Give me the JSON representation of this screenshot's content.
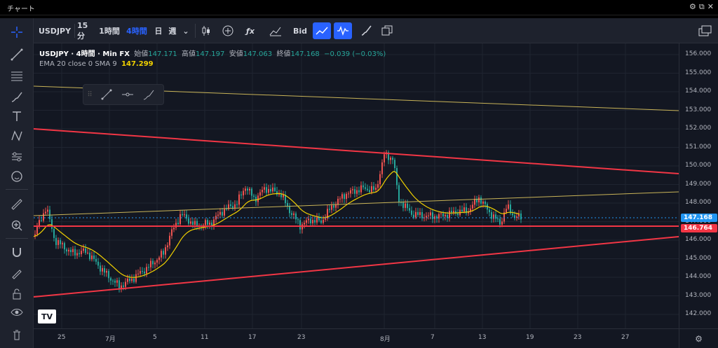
{
  "window": {
    "title": "チャート",
    "controls": [
      "⚙",
      "⧉",
      "✕"
    ]
  },
  "left_toolbar": [
    "crosshair-icon",
    "trend-line-icon",
    "fib-lines-icon",
    "brush-icon",
    "text-icon",
    "pattern-icon",
    "forecast-icon",
    "emoji-icon",
    "ruler-icon",
    "zoom-in-icon",
    "magnet-icon",
    "lock-draw-icon",
    "lock-icon",
    "eye-icon",
    "trash-icon"
  ],
  "toolbar": {
    "symbol": "USDJPY",
    "intervals": [
      "15分",
      "1時間",
      "4時間",
      "日",
      "週"
    ],
    "active_interval": "4時間",
    "price_source": "Bid"
  },
  "legend": {
    "symbol_line": "USDJPY · 4時間 · Min FX",
    "open_label": "始値",
    "open": "147.171",
    "high_label": "高値",
    "high": "147.197",
    "low_label": "安値",
    "low": "147.063",
    "close_label": "終値",
    "close": "147.168",
    "change": "−0.039 (−0.03%)",
    "ema_label": "EMA 20 close 0 SMA 9",
    "ema_value": "147.299"
  },
  "price_axis": {
    "labels": [
      "156.000",
      "155.000",
      "154.000",
      "153.000",
      "152.000",
      "151.000",
      "150.000",
      "149.000",
      "148.000",
      "147.000",
      "146.000",
      "145.000",
      "144.000",
      "143.000",
      "142.000"
    ],
    "current_price": "147.168",
    "line_price": "146.764"
  },
  "time_axis": {
    "labels": [
      "25",
      "7月",
      "5",
      "11",
      "17",
      "23",
      "8月",
      "7",
      "13",
      "19",
      "23",
      "27"
    ]
  },
  "colors": {
    "up": "#ef5350",
    "down": "#26a69a",
    "ema": "#f0d000",
    "trend": "#f23645",
    "accent": "#2962ff"
  }
}
